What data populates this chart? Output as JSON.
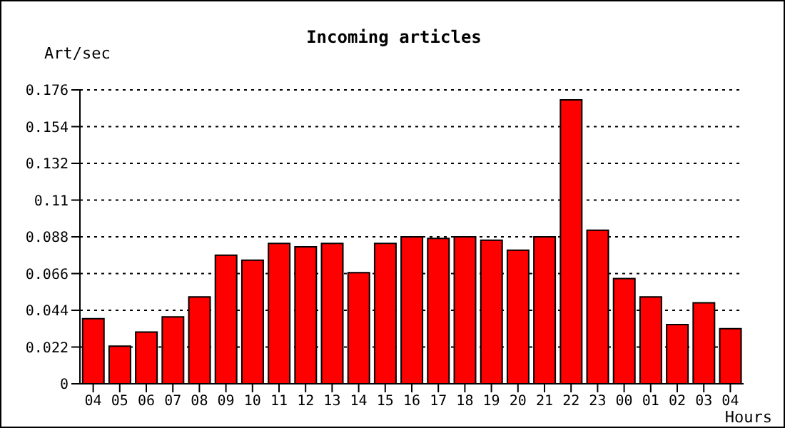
{
  "chart_data": {
    "type": "bar",
    "title": "Incoming articles",
    "ylabel": "Art/sec",
    "xlabel": "Hours",
    "categories": [
      "04",
      "05",
      "06",
      "07",
      "08",
      "09",
      "10",
      "11",
      "12",
      "13",
      "14",
      "15",
      "16",
      "17",
      "18",
      "19",
      "20",
      "21",
      "22",
      "23",
      "00",
      "01",
      "02",
      "03",
      "04"
    ],
    "values": [
      0.039,
      0.0225,
      0.031,
      0.04,
      0.052,
      0.077,
      0.074,
      0.084,
      0.082,
      0.084,
      0.0665,
      0.084,
      0.088,
      0.087,
      0.088,
      0.086,
      0.08,
      0.088,
      0.17,
      0.092,
      0.063,
      0.052,
      0.0355,
      0.0485,
      0.033
    ],
    "color": "#ff0000",
    "ylim": [
      0,
      0.176
    ],
    "yticks": [
      0,
      0.022,
      0.044,
      0.066,
      0.088,
      0.11,
      0.132,
      0.154,
      0.176
    ],
    "grid": "y",
    "legend": false
  }
}
